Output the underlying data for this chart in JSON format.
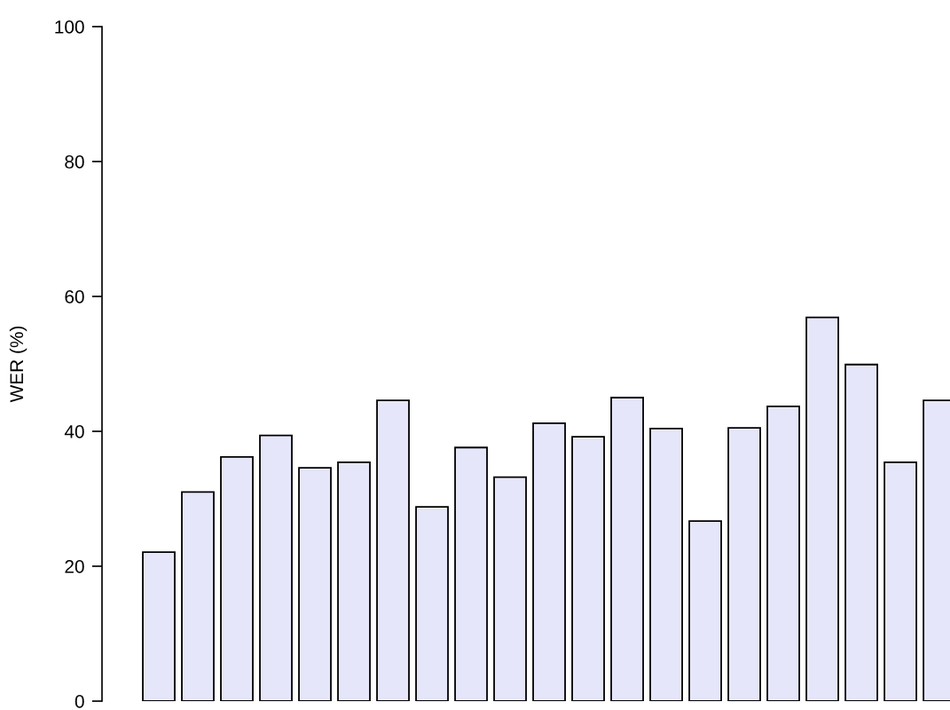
{
  "chart_data": {
    "type": "bar",
    "ylabel": "WER (%)",
    "categories": [
      null,
      null,
      null,
      null,
      null,
      null,
      null,
      null,
      null,
      null,
      null,
      null,
      null,
      null,
      null,
      null,
      null,
      null,
      null,
      null,
      null
    ],
    "values": [
      22.1,
      31.0,
      36.2,
      39.4,
      34.6,
      35.4,
      44.6,
      28.8,
      37.6,
      33.2,
      41.2,
      39.2,
      45.0,
      40.4,
      26.7,
      40.5,
      43.7,
      56.9,
      49.9,
      35.4,
      44.6
    ],
    "color": "#e6e6fa",
    "ylim": [
      0,
      100
    ],
    "yticks": [
      0,
      20,
      40,
      60,
      80,
      100
    ],
    "grid": false,
    "tick_labels": "y"
  }
}
